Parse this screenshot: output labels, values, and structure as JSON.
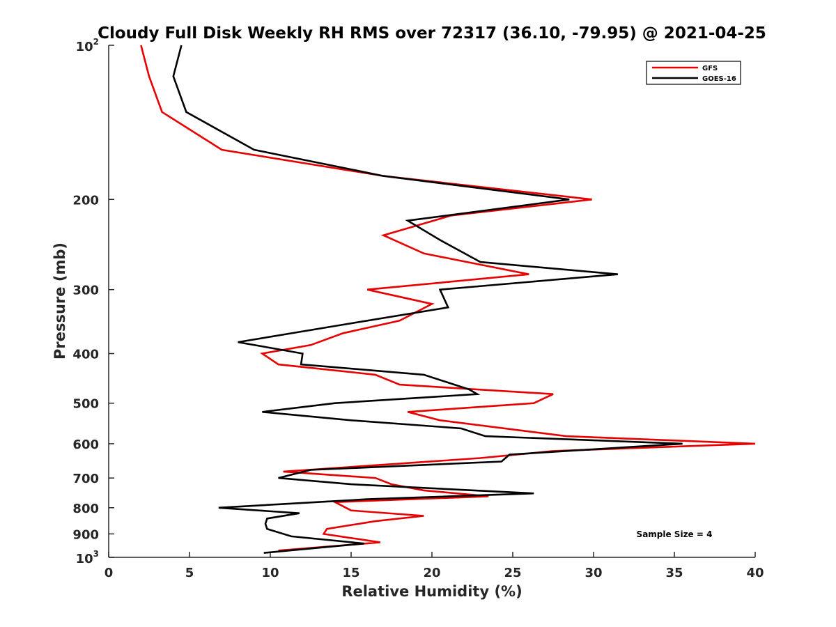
{
  "chart_data": {
    "type": "line",
    "title": "Cloudy Full Disk Weekly RH RMS over 72317 (36.10, -79.95) @ 2021-04-25",
    "xlabel": "Relative Humidity (%)",
    "ylabel": "Pressure (mb)",
    "xlim": [
      0,
      40
    ],
    "ylim": [
      100,
      1000
    ],
    "y_scale": "log",
    "y_reversed": true,
    "grid": false,
    "legend_position": "top-right",
    "x_ticks": [
      "0",
      "5",
      "10",
      "15",
      "20",
      "25",
      "30",
      "35",
      "40"
    ],
    "y_ticks": [
      {
        "value": 100,
        "base": "10",
        "exp": "2"
      },
      {
        "value": 200,
        "label": "200"
      },
      {
        "value": 300,
        "label": "300"
      },
      {
        "value": 400,
        "label": "400"
      },
      {
        "value": 500,
        "label": "500"
      },
      {
        "value": 600,
        "label": "600"
      },
      {
        "value": 700,
        "label": "700"
      },
      {
        "value": 800,
        "label": "800"
      },
      {
        "value": 900,
        "label": "900"
      },
      {
        "value": 1000,
        "base": "10",
        "exp": "3"
      }
    ],
    "series": [
      {
        "name": "GFS",
        "color": "#e60000",
        "points": [
          {
            "x": 2.0,
            "y": 100
          },
          {
            "x": 2.5,
            "y": 115
          },
          {
            "x": 3.3,
            "y": 135
          },
          {
            "x": 7.0,
            "y": 160
          },
          {
            "x": 17.0,
            "y": 180
          },
          {
            "x": 29.9,
            "y": 200
          },
          {
            "x": 21.2,
            "y": 215
          },
          {
            "x": 17.0,
            "y": 235
          },
          {
            "x": 19.5,
            "y": 255
          },
          {
            "x": 26.0,
            "y": 280
          },
          {
            "x": 16.0,
            "y": 300
          },
          {
            "x": 20.0,
            "y": 320
          },
          {
            "x": 18.0,
            "y": 345
          },
          {
            "x": 14.5,
            "y": 365
          },
          {
            "x": 12.5,
            "y": 385
          },
          {
            "x": 9.5,
            "y": 400
          },
          {
            "x": 10.5,
            "y": 420
          },
          {
            "x": 16.5,
            "y": 440
          },
          {
            "x": 18.0,
            "y": 460
          },
          {
            "x": 27.5,
            "y": 480
          },
          {
            "x": 26.3,
            "y": 500
          },
          {
            "x": 18.5,
            "y": 520
          },
          {
            "x": 20.5,
            "y": 540
          },
          {
            "x": 28.3,
            "y": 580
          },
          {
            "x": 40.0,
            "y": 600
          },
          {
            "x": 27.5,
            "y": 620
          },
          {
            "x": 23.0,
            "y": 640
          },
          {
            "x": 10.8,
            "y": 680
          },
          {
            "x": 16.5,
            "y": 700
          },
          {
            "x": 17.5,
            "y": 720
          },
          {
            "x": 19.5,
            "y": 740
          },
          {
            "x": 23.5,
            "y": 760
          },
          {
            "x": 14.0,
            "y": 780
          },
          {
            "x": 15.0,
            "y": 810
          },
          {
            "x": 19.5,
            "y": 830
          },
          {
            "x": 16.5,
            "y": 850
          },
          {
            "x": 13.5,
            "y": 880
          },
          {
            "x": 13.3,
            "y": 900
          },
          {
            "x": 16.8,
            "y": 935
          },
          {
            "x": 10.5,
            "y": 970
          }
        ]
      },
      {
        "name": "GOES-16",
        "color": "#000000",
        "points": [
          {
            "x": 4.5,
            "y": 100
          },
          {
            "x": 4.0,
            "y": 115
          },
          {
            "x": 4.8,
            "y": 135
          },
          {
            "x": 9.0,
            "y": 160
          },
          {
            "x": 17.0,
            "y": 180
          },
          {
            "x": 28.5,
            "y": 200
          },
          {
            "x": 18.5,
            "y": 220
          },
          {
            "x": 20.5,
            "y": 240
          },
          {
            "x": 23.0,
            "y": 265
          },
          {
            "x": 31.5,
            "y": 280
          },
          {
            "x": 20.5,
            "y": 300
          },
          {
            "x": 21.0,
            "y": 325
          },
          {
            "x": 14.8,
            "y": 350
          },
          {
            "x": 8.0,
            "y": 380
          },
          {
            "x": 12.0,
            "y": 400
          },
          {
            "x": 11.9,
            "y": 420
          },
          {
            "x": 19.5,
            "y": 440
          },
          {
            "x": 22.3,
            "y": 470
          },
          {
            "x": 22.8,
            "y": 480
          },
          {
            "x": 14.0,
            "y": 500
          },
          {
            "x": 9.5,
            "y": 520
          },
          {
            "x": 15.0,
            "y": 540
          },
          {
            "x": 21.8,
            "y": 560
          },
          {
            "x": 23.3,
            "y": 580
          },
          {
            "x": 35.5,
            "y": 600
          },
          {
            "x": 24.8,
            "y": 630
          },
          {
            "x": 24.3,
            "y": 650
          },
          {
            "x": 12.5,
            "y": 675
          },
          {
            "x": 10.5,
            "y": 700
          },
          {
            "x": 15.0,
            "y": 720
          },
          {
            "x": 26.3,
            "y": 750
          },
          {
            "x": 16.0,
            "y": 770
          },
          {
            "x": 6.8,
            "y": 800
          },
          {
            "x": 11.8,
            "y": 820
          },
          {
            "x": 9.8,
            "y": 840
          },
          {
            "x": 9.7,
            "y": 860
          },
          {
            "x": 9.8,
            "y": 880
          },
          {
            "x": 11.3,
            "y": 910
          },
          {
            "x": 15.8,
            "y": 940
          },
          {
            "x": 9.6,
            "y": 980
          }
        ]
      }
    ],
    "annotations": [
      "Sample Size = 4"
    ]
  }
}
